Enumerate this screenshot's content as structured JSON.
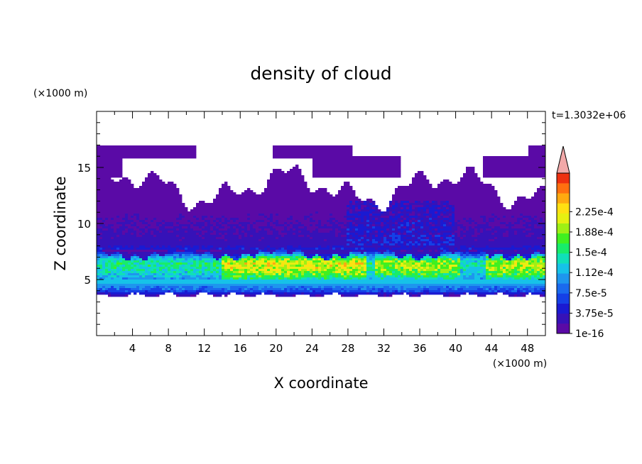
{
  "chart_data": {
    "type": "heatmap",
    "title": "density of cloud",
    "xlabel": "X coordinate",
    "ylabel": "Z coordinate",
    "x_unit": "(×1000 m)",
    "y_unit": "(×1000 m)",
    "time_label": "t=1.3032e+06",
    "xlim": [
      0,
      50
    ],
    "ylim": [
      0,
      20
    ],
    "x_ticks": [
      4,
      8,
      12,
      16,
      20,
      24,
      28,
      32,
      36,
      40,
      44,
      48
    ],
    "y_ticks": [
      5,
      10,
      15
    ],
    "colorbar": {
      "labels": [
        "1e-16",
        "3.75e-5",
        "7.5e-5",
        "1.12e-4",
        "1.5e-4",
        "1.88e-4",
        "2.25e-4"
      ],
      "levels": 16,
      "extend": "max",
      "colors": [
        "#5a0aa6",
        "#3612b8",
        "#1a1ad2",
        "#1540e6",
        "#1a6aee",
        "#1e96ee",
        "#16c2e8",
        "#10e0b8",
        "#18ec6a",
        "#40f020",
        "#9ef015",
        "#e6f011",
        "#ffe012",
        "#ffaa10",
        "#ff7010",
        "#ee3010"
      ],
      "over_color": "#f2a9a9"
    },
    "density_profile": {
      "z": [
        3.5,
        4.0,
        4.5,
        5.0,
        5.5,
        6.0,
        6.5,
        7.0,
        7.5,
        8.0,
        9.0,
        10.0,
        11.0,
        12.0,
        13.0,
        14.0,
        15.0,
        16.0,
        17.0
      ],
      "approx_density": [
        1e-05,
        6e-05,
        8.5e-05,
        0.00011,
        0.00014,
        0.00016,
        0.000165,
        0.00012,
        5e-05,
        2.5e-05,
        1.8e-05,
        1.5e-05,
        1.2e-05,
        8e-06,
        5e-06,
        4e-06,
        2e-06,
        1e-06,
        5e-07
      ]
    }
  }
}
